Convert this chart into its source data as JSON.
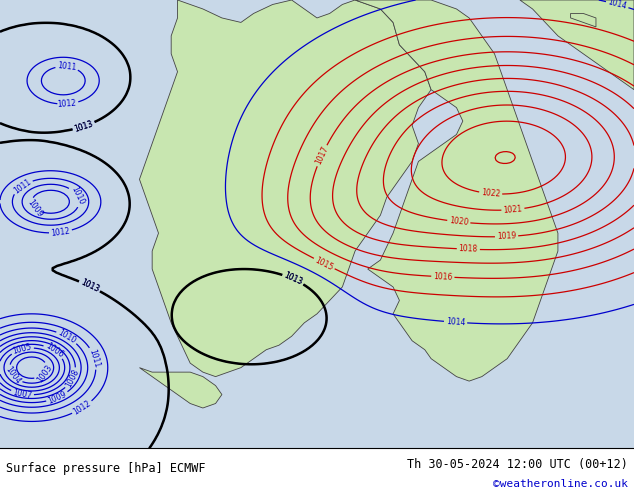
{
  "title_left": "Surface pressure [hPa] ECMWF",
  "title_right": "Th 30-05-2024 12:00 UTC (00+12)",
  "credit": "©weatheronline.co.uk",
  "sea_color": "#c8d8e8",
  "land_color": "#c8e6b0",
  "land_color2": "#d8d8d8",
  "border_color": "#444444",
  "blue_line": "#0000cc",
  "red_line": "#cc0000",
  "black_line": "#000000",
  "white_bg": "#ffffff",
  "figsize": [
    6.34,
    4.9
  ],
  "dpi": 100
}
